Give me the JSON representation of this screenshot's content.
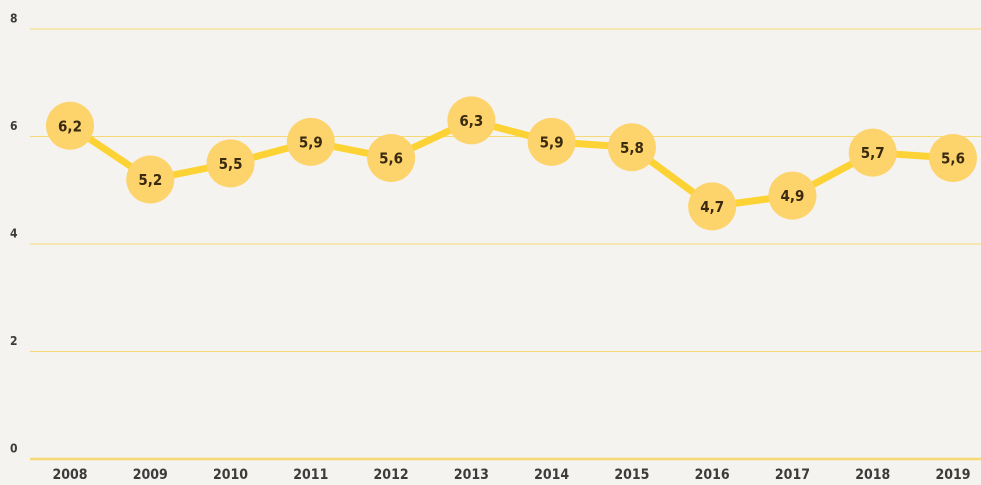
{
  "chart_data": {
    "type": "line",
    "categories": [
      "2008",
      "2009",
      "2010",
      "2011",
      "2012",
      "2013",
      "2014",
      "2015",
      "2016",
      "2017",
      "2018",
      "2019"
    ],
    "values": [
      6.2,
      5.2,
      5.5,
      5.9,
      5.6,
      6.3,
      5.9,
      5.8,
      4.7,
      4.9,
      5.7,
      5.6
    ],
    "value_labels": [
      "6,2",
      "5,2",
      "5,5",
      "5,9",
      "5,6",
      "6,3",
      "5,9",
      "5,8",
      "4,7",
      "4,9",
      "5,7",
      "5,6"
    ],
    "color": "#fdd235",
    "ylim": [
      0,
      8
    ],
    "yticks": [
      0,
      2,
      4,
      6,
      8
    ],
    "grid": true
  }
}
